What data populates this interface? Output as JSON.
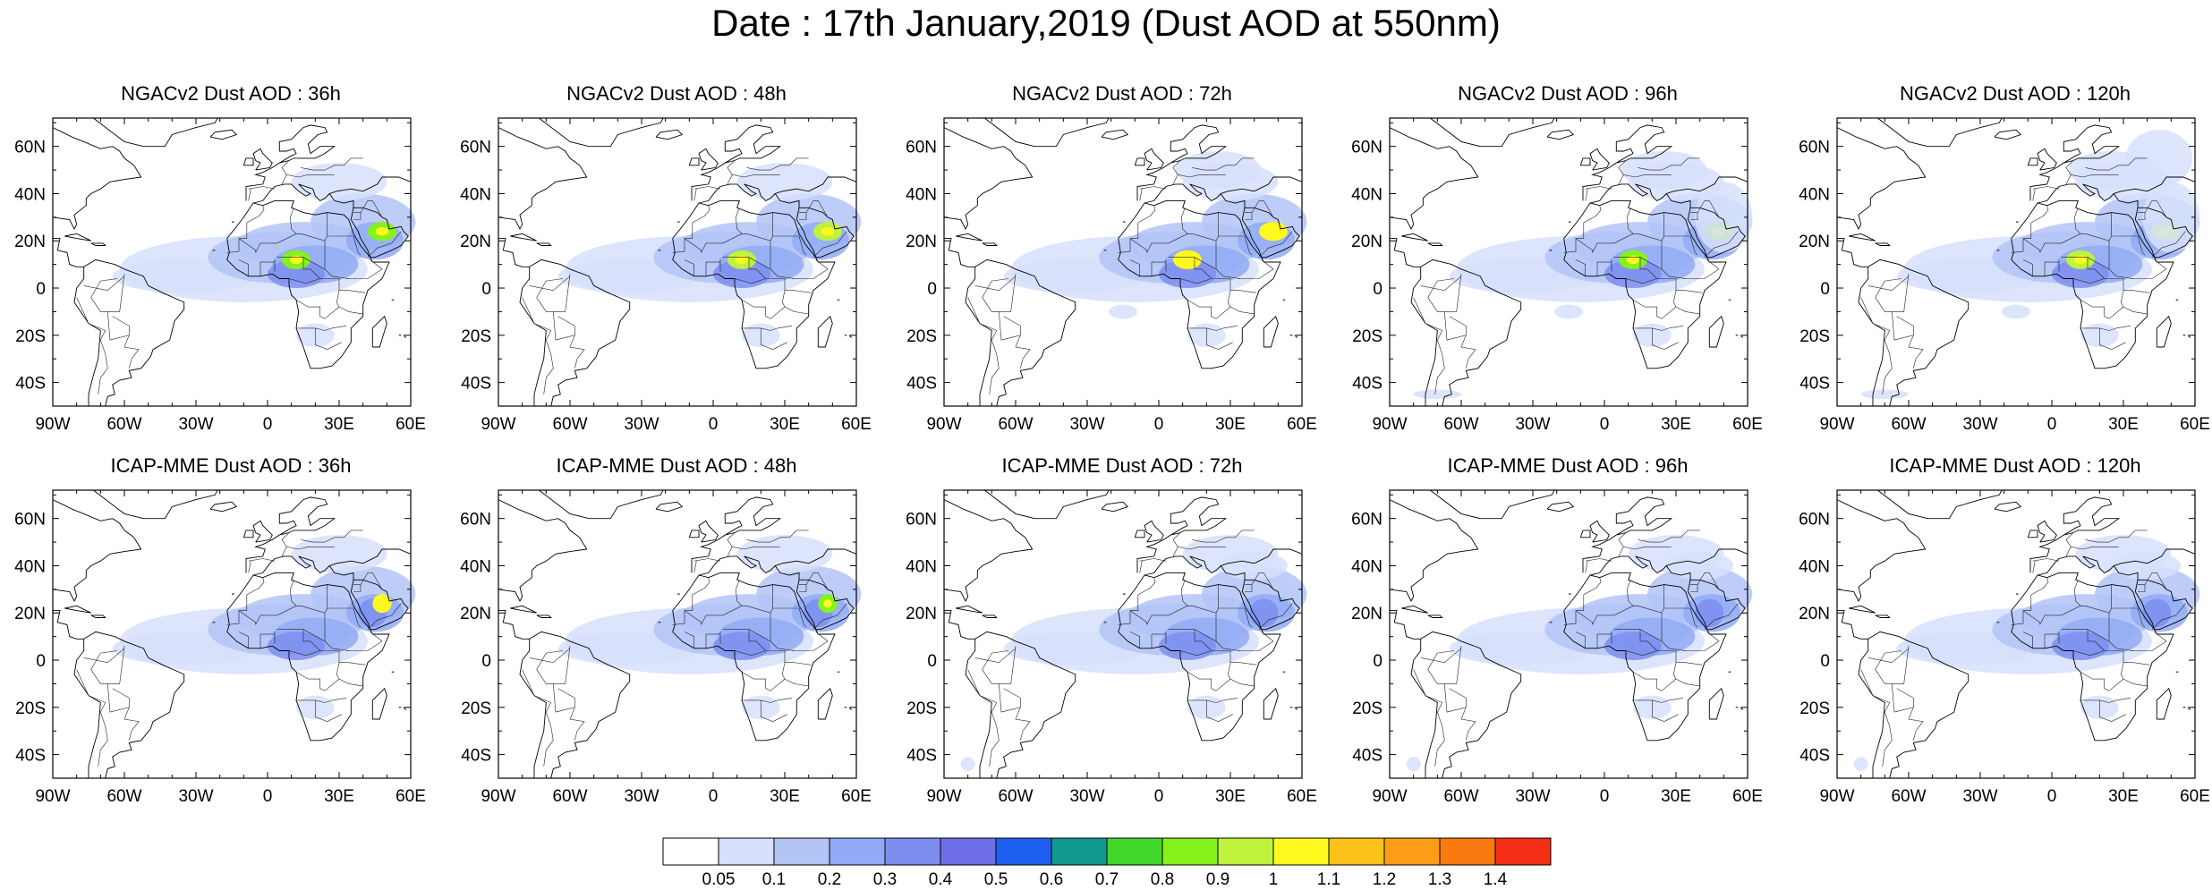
{
  "title": "Date : 17th January,2019 (Dust AOD at 550nm)",
  "panels": [
    {
      "title": "NGACv2 Dust AOD : 36h"
    },
    {
      "title": "NGACv2 Dust AOD : 48h"
    },
    {
      "title": "NGACv2 Dust AOD : 72h"
    },
    {
      "title": "NGACv2 Dust AOD : 96h"
    },
    {
      "title": "NGACv2 Dust AOD : 120h"
    },
    {
      "title": "ICAP-MME Dust AOD : 36h"
    },
    {
      "title": "ICAP-MME Dust AOD : 48h"
    },
    {
      "title": "ICAP-MME Dust AOD : 72h"
    },
    {
      "title": "ICAP-MME Dust AOD : 96h"
    },
    {
      "title": "ICAP-MME Dust AOD : 120h"
    }
  ],
  "lon_ticks": [
    "90W",
    "60W",
    "30W",
    "0",
    "30E",
    "60E"
  ],
  "lat_ticks": [
    "60N",
    "40N",
    "20N",
    "0",
    "20S",
    "40S"
  ],
  "colorbar": {
    "labels": [
      "0.05",
      "0.1",
      "0.2",
      "0.3",
      "0.4",
      "0.5",
      "0.6",
      "0.7",
      "0.8",
      "0.9",
      "1",
      "1.1",
      "1.2",
      "1.3",
      "1.4"
    ],
    "colors": [
      "#ffffff",
      "#d7e0fb",
      "#b3c4f7",
      "#92aaf5",
      "#7d8ef0",
      "#6e6ee7",
      "#1f5fef",
      "#0f9990",
      "#43d62b",
      "#86f21b",
      "#bff23c",
      "#fff81e",
      "#fcc21a",
      "#fb9e16",
      "#f97a10",
      "#f52e16"
    ]
  }
}
